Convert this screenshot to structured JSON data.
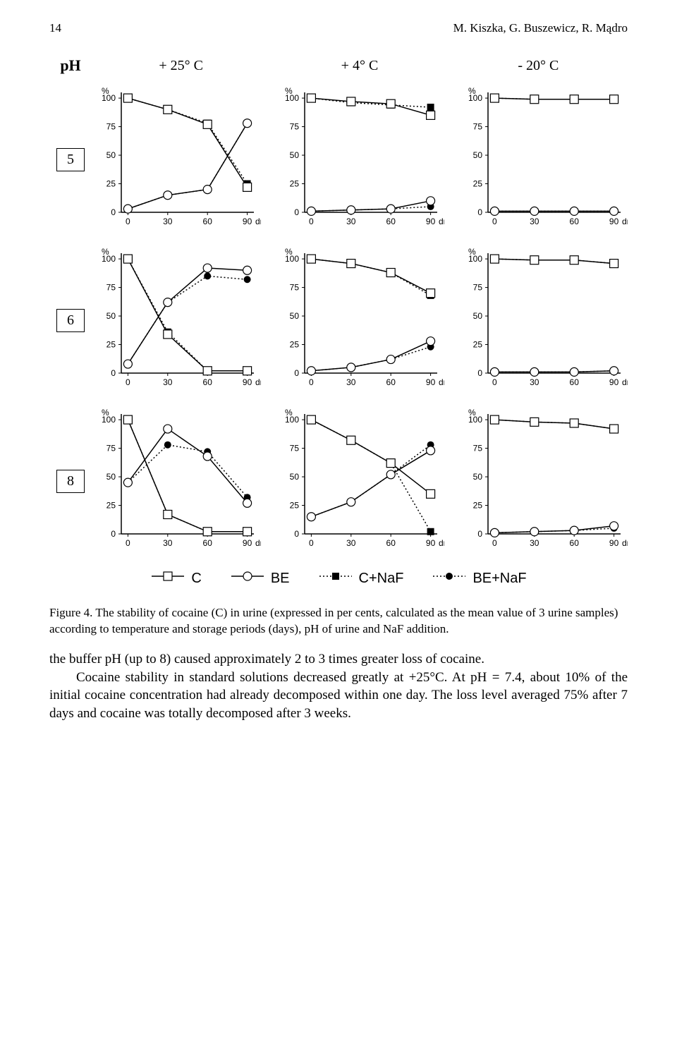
{
  "page_number": "14",
  "authors": "M. Kiszka, G. Buszewicz, R. Mądro",
  "grid": {
    "ph_header": "pH",
    "col_headers": [
      "+ 25° C",
      "+ 4° C",
      "- 20° C"
    ],
    "row_labels": [
      "5",
      "6",
      "8"
    ]
  },
  "axis": {
    "y_label": "%",
    "y_ticks": [
      0,
      25,
      50,
      75,
      100
    ],
    "x_ticks": [
      0,
      30,
      60,
      90
    ],
    "x_unit": "dni",
    "ylim": [
      0,
      105
    ],
    "xlim": [
      -5,
      95
    ],
    "font_size_pt": 10,
    "line_color": "#000000",
    "background": "#ffffff"
  },
  "series_style": {
    "C": {
      "marker": "open-square",
      "marker_size": 6,
      "line_style": "solid",
      "line_width": 1.5,
      "color": "#000000"
    },
    "BE": {
      "marker": "open-circle",
      "marker_size": 6,
      "line_style": "solid",
      "line_width": 1.5,
      "color": "#000000"
    },
    "C_NaF": {
      "marker": "filled-square",
      "marker_size": 5,
      "line_style": "dotted",
      "line_width": 1.5,
      "color": "#000000"
    },
    "BE_NaF": {
      "marker": "filled-circle",
      "marker_size": 5,
      "line_style": "dotted",
      "line_width": 1.5,
      "color": "#000000"
    }
  },
  "charts": [
    [
      {
        "C": [
          100,
          90,
          77,
          22
        ],
        "BE": [
          3,
          15,
          20,
          78
        ],
        "C_NaF": [
          100,
          90,
          78,
          25
        ],
        "BE_NaF": [
          3,
          15,
          20,
          78
        ]
      },
      {
        "C": [
          100,
          97,
          95,
          85
        ],
        "BE": [
          1,
          2,
          3,
          10
        ],
        "C_NaF": [
          100,
          96,
          94,
          92
        ],
        "BE_NaF": [
          1,
          2,
          3,
          5
        ]
      },
      {
        "C": [
          100,
          99,
          99,
          99
        ],
        "BE": [
          1,
          1,
          1,
          1
        ],
        "C_NaF": [
          100,
          99,
          99,
          99
        ],
        "BE_NaF": [
          1,
          1,
          1,
          1
        ]
      }
    ],
    [
      {
        "C": [
          100,
          34,
          2,
          2
        ],
        "BE": [
          8,
          62,
          92,
          90
        ],
        "C_NaF": [
          100,
          36,
          2,
          2
        ],
        "BE_NaF": [
          8,
          62,
          85,
          82
        ]
      },
      {
        "C": [
          100,
          96,
          88,
          70
        ],
        "BE": [
          2,
          5,
          12,
          28
        ],
        "C_NaF": [
          100,
          96,
          88,
          68
        ],
        "BE_NaF": [
          2,
          5,
          12,
          23
        ]
      },
      {
        "C": [
          100,
          99,
          99,
          96
        ],
        "BE": [
          1,
          1,
          1,
          2
        ],
        "C_NaF": [
          100,
          99,
          99,
          96
        ],
        "BE_NaF": [
          1,
          1,
          1,
          2
        ]
      }
    ],
    [
      {
        "C": [
          100,
          17,
          2,
          2
        ],
        "BE": [
          45,
          92,
          68,
          27
        ],
        "C_NaF": [
          100,
          17,
          2,
          2
        ],
        "BE_NaF": [
          45,
          78,
          72,
          32
        ]
      },
      {
        "C": [
          100,
          82,
          62,
          35
        ],
        "BE": [
          15,
          28,
          52,
          73
        ],
        "C_NaF": [
          100,
          82,
          62,
          2
        ],
        "BE_NaF": [
          15,
          28,
          52,
          78
        ]
      },
      {
        "C": [
          100,
          98,
          97,
          92
        ],
        "BE": [
          1,
          2,
          3,
          7
        ],
        "C_NaF": [
          100,
          98,
          97,
          92
        ],
        "BE_NaF": [
          1,
          2,
          3,
          5
        ]
      }
    ]
  ],
  "legend": {
    "items": [
      {
        "label": "C",
        "style_key": "C"
      },
      {
        "label": "BE",
        "style_key": "BE"
      },
      {
        "label": "C+NaF",
        "style_key": "C_NaF"
      },
      {
        "label": "BE+NaF",
        "style_key": "BE_NaF"
      }
    ]
  },
  "caption": "Figure 4. The stability of cocaine (C) in urine (expressed in per cents, calculated as the mean value of 3 urine samples) according to temperature and storage periods (days), pH of urine and NaF addition.",
  "body_text": "the buffer pH (up to 8) caused approximately 2 to 3 times greater loss of cocaine.\nCocaine stability in standard solutions decreased greatly at +25°C. At pH = 7.4, about 10% of the initial cocaine concentration had already decomposed within one day. The loss level averaged 75% after 7 days and cocaine was totally decomposed after 3 weeks."
}
